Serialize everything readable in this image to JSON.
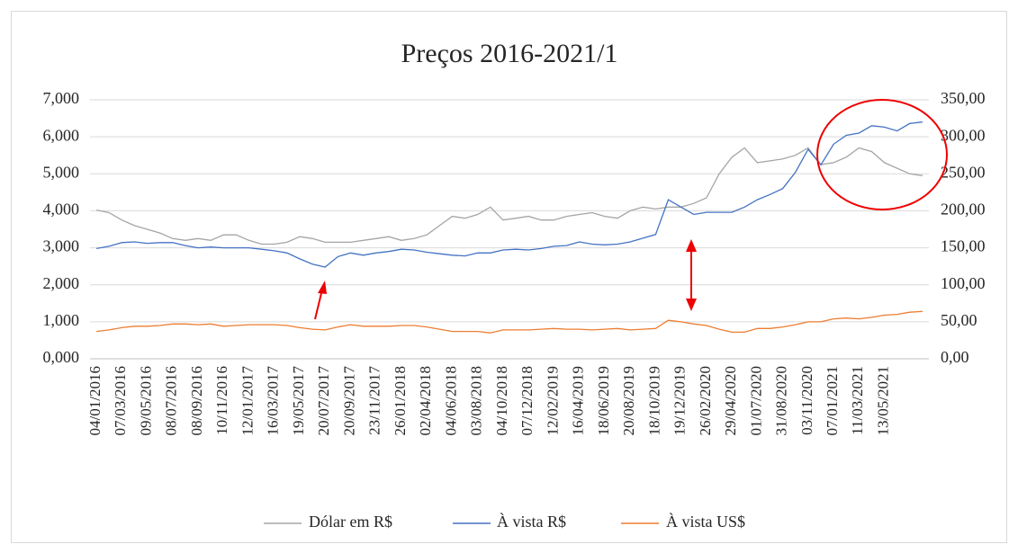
{
  "chart_data": {
    "type": "line",
    "title": "Preços 2016-2021/1",
    "categories": [
      "04/01/2016",
      null,
      "07/03/2016",
      null,
      "09/05/2016",
      null,
      "08/07/2016",
      null,
      "08/09/2016",
      null,
      "10/11/2016",
      null,
      "12/01/2017",
      null,
      "16/03/2017",
      null,
      "19/05/2017",
      null,
      "20/07/2017",
      null,
      "20/09/2017",
      null,
      "23/11/2017",
      null,
      "26/01/2018",
      null,
      "02/04/2018",
      null,
      "04/06/2018",
      null,
      "03/08/2018",
      null,
      "04/10/2018",
      null,
      "07/12/2018",
      null,
      "12/02/2019",
      null,
      "16/04/2019",
      null,
      "18/06/2019",
      null,
      "20/08/2019",
      null,
      "18/10/2019",
      null,
      "19/12/2019",
      null,
      "26/02/2020",
      null,
      "29/04/2020",
      null,
      "01/07/2020",
      null,
      "31/08/2020",
      null,
      "03/11/2020",
      null,
      "07/01/2021",
      null,
      "11/03/2021",
      null,
      "13/05/2021",
      null,
      null,
      null
    ],
    "series": [
      {
        "name": "Dólar em R$",
        "color": "#a5a5a5",
        "axis": "y",
        "values": [
          4.02,
          3.95,
          3.75,
          3.6,
          3.5,
          3.4,
          3.25,
          3.2,
          3.25,
          3.2,
          3.35,
          3.35,
          3.2,
          3.1,
          3.1,
          3.15,
          3.3,
          3.25,
          3.15,
          3.15,
          3.15,
          3.2,
          3.25,
          3.3,
          3.2,
          3.25,
          3.35,
          3.6,
          3.85,
          3.8,
          3.9,
          4.1,
          3.75,
          3.8,
          3.85,
          3.75,
          3.75,
          3.85,
          3.9,
          3.95,
          3.85,
          3.8,
          4.0,
          4.1,
          4.05,
          4.1,
          4.1,
          4.2,
          4.35,
          5.0,
          5.45,
          5.7,
          5.3,
          5.35,
          5.4,
          5.5,
          5.7,
          5.25,
          5.3,
          5.45,
          5.7,
          5.6,
          5.3,
          5.15,
          5.0,
          4.95
        ]
      },
      {
        "name": "À vista R$",
        "color": "#4472c4",
        "axis": "y2",
        "values": [
          149,
          152,
          157,
          158,
          156,
          157,
          157,
          153,
          150,
          151,
          150,
          150,
          150,
          148,
          146,
          143,
          135,
          128,
          124,
          138,
          143,
          140,
          143,
          145,
          148,
          147,
          144,
          142,
          140,
          139,
          143,
          143,
          147,
          148,
          147,
          149,
          152,
          153,
          158,
          155,
          154,
          155,
          158,
          163,
          168,
          215,
          205,
          195,
          198,
          198,
          198,
          205,
          215,
          222,
          230,
          252,
          283,
          262,
          290,
          302,
          305,
          315,
          313,
          308,
          318,
          320
        ]
      },
      {
        "name": "À vista US$",
        "color": "#ed7d31",
        "axis": "y2",
        "values": [
          37,
          39,
          42,
          44,
          44,
          45,
          47,
          47,
          46,
          47,
          44,
          45,
          46,
          46,
          46,
          45,
          42,
          40,
          39,
          43,
          46,
          44,
          44,
          44,
          45,
          45,
          43,
          40,
          37,
          37,
          37,
          35,
          39,
          39,
          39,
          40,
          41,
          40,
          40,
          39,
          40,
          41,
          39,
          40,
          41,
          52,
          50,
          47,
          45,
          40,
          36,
          36,
          41,
          41,
          43,
          46,
          50,
          50,
          54,
          55,
          54,
          56,
          59,
          60,
          63,
          64
        ]
      }
    ],
    "ylim": [
      0,
      7
    ],
    "yticks": [
      {
        "value": 0,
        "label": "0,000"
      },
      {
        "value": 1,
        "label": "1,000"
      },
      {
        "value": 2,
        "label": "2,000"
      },
      {
        "value": 3,
        "label": "3,000"
      },
      {
        "value": 4,
        "label": "4,000"
      },
      {
        "value": 5,
        "label": "5,000"
      },
      {
        "value": 6,
        "label": "6,000"
      },
      {
        "value": 7,
        "label": "7,000"
      }
    ],
    "y2lim": [
      0,
      350
    ],
    "y2ticks": [
      {
        "value": 0,
        "label": "0,00"
      },
      {
        "value": 50,
        "label": "50,00"
      },
      {
        "value": 100,
        "label": "100,00"
      },
      {
        "value": 150,
        "label": "150,00"
      },
      {
        "value": 200,
        "label": "200,00"
      },
      {
        "value": 250,
        "label": "250,00"
      },
      {
        "value": 300,
        "label": "300,00"
      },
      {
        "value": 350,
        "label": "350,00"
      }
    ],
    "grid": true,
    "legend": "bottom"
  }
}
